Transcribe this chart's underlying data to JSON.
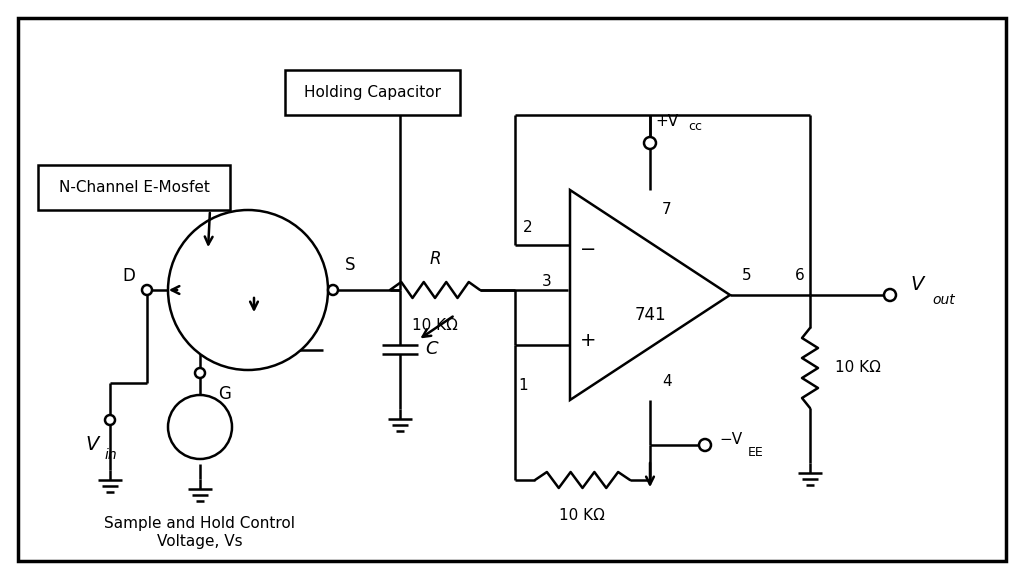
{
  "bg_color": "#ffffff",
  "line_color": "#000000",
  "line_width": 1.8,
  "fig_width": 10.24,
  "fig_height": 5.79,
  "labels": {
    "n_channel": "N-Channel E-Mosfet",
    "holding_cap": "Holding Capacitor",
    "vin_main": "V",
    "vin_sub": "in",
    "vout_main": "V",
    "vout_sub": "out",
    "vcc_main": "+V",
    "vcc_sub": "cc",
    "vee_main": "−V",
    "vee_sub": "EE",
    "r_label": "R",
    "r_value": "10 KΩ",
    "r2_value": "10 KΩ",
    "r3_value": "10 KΩ",
    "c_label": "C",
    "d_label": "D",
    "s_label": "S",
    "g_label": "G",
    "op_label": "741",
    "pin1": "1",
    "pin2": "2",
    "pin3": "3",
    "pin4": "4",
    "pin5": "5",
    "pin6": "6",
    "pin7": "7",
    "minus": "−",
    "plus": "+",
    "sample_hold_line1": "Sample and Hold Control",
    "sample_hold_line2": "Voltage, Vs"
  }
}
